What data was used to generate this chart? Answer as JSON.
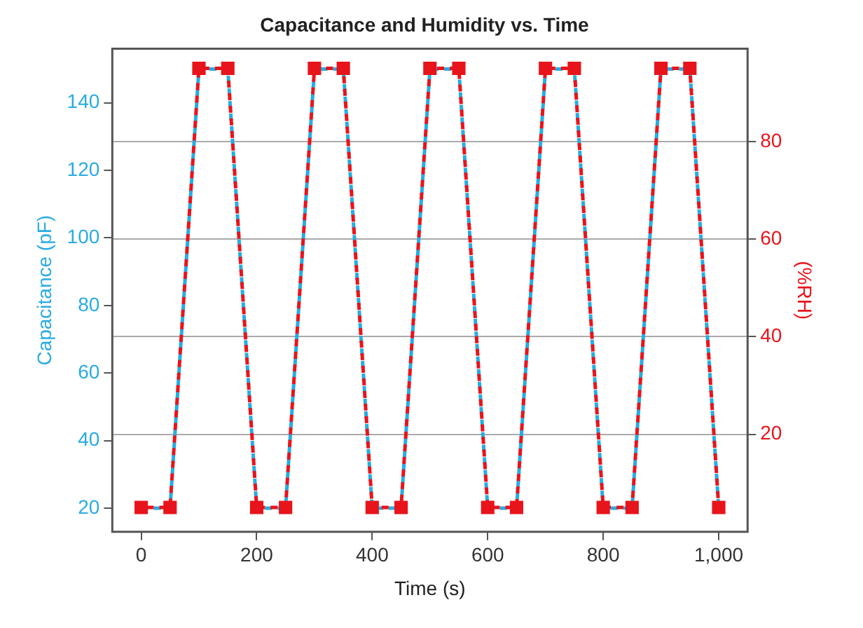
{
  "chart_data": {
    "type": "line",
    "title": "Capacitance and Humidity vs. Time",
    "xlabel": "Time (s)",
    "ylabel": "Capacitance (pF)",
    "y2label": "(%RH)",
    "x": [
      0,
      50,
      100,
      150,
      200,
      250,
      300,
      350,
      400,
      450,
      500,
      550,
      600,
      650,
      700,
      750,
      800,
      850,
      900,
      950,
      1000
    ],
    "xlim": [
      -50,
      1050
    ],
    "xticks": [
      0,
      200,
      400,
      600,
      800,
      {
        "value": 1000,
        "label": "1,000"
      }
    ],
    "ylim": [
      13,
      156
    ],
    "yticks": [
      20,
      40,
      60,
      80,
      100,
      120,
      140
    ],
    "y2lim": [
      0,
      99
    ],
    "y2ticks": [
      20,
      40,
      60,
      80
    ],
    "grid": "y",
    "legend": false,
    "line_style": "dashed",
    "series": [
      {
        "color": "#29abe2",
        "marker": "none",
        "values": [
          20,
          20,
          150,
          150,
          20,
          20,
          150,
          150,
          20,
          20,
          150,
          150,
          20,
          20,
          150,
          150,
          20,
          20,
          150,
          150,
          20
        ]
      },
      {
        "color": "#e8141b",
        "axis": "y2",
        "marker": "square",
        "values": [
          5,
          5,
          95,
          95,
          5,
          5,
          95,
          95,
          5,
          5,
          95,
          95,
          5,
          5,
          95,
          95,
          5,
          5,
          95,
          95,
          5
        ]
      }
    ]
  }
}
